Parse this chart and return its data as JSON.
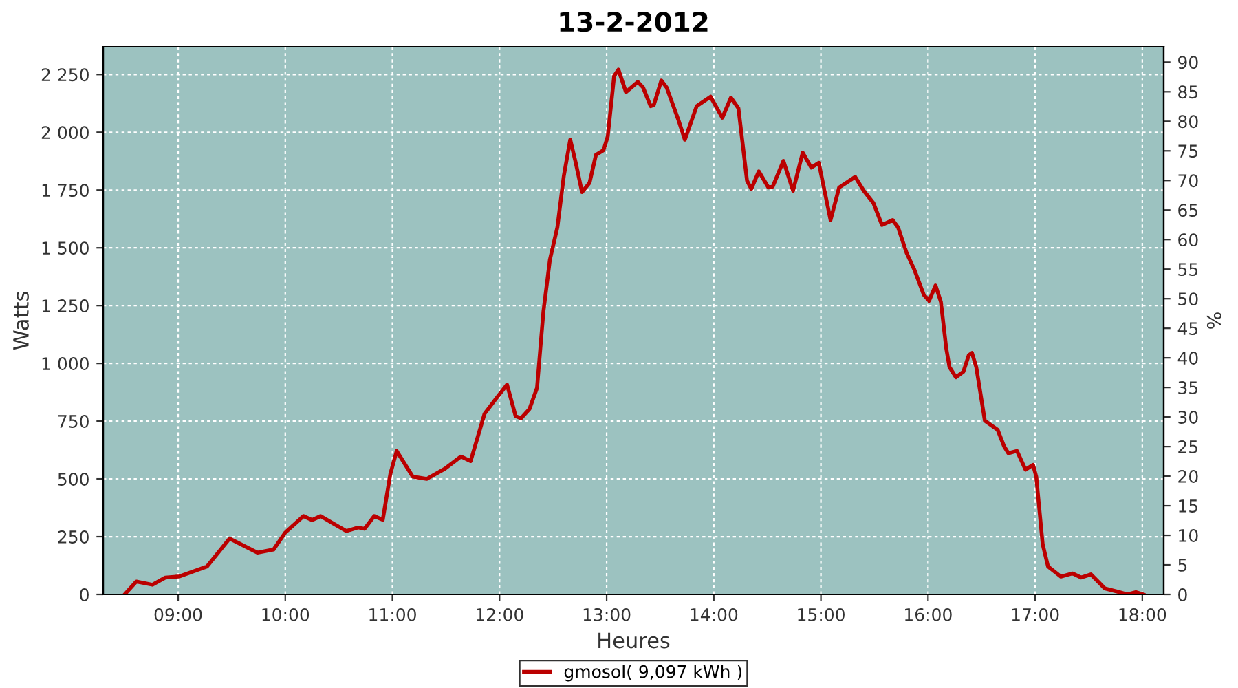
{
  "chart_data": {
    "type": "line",
    "title": "13-2-2012",
    "xlabel": "Heures",
    "ylabel": "Watts",
    "y2label": "%",
    "series": [
      {
        "name": "gmosol( 9,097 kWh )",
        "color": "#bb0000",
        "x": [
          8.5,
          8.61,
          8.76,
          8.88,
          9.01,
          9.27,
          9.48,
          9.74,
          9.89,
          10.0,
          10.17,
          10.25,
          10.33,
          10.57,
          10.68,
          10.74,
          10.83,
          10.91,
          10.98,
          11.04,
          11.19,
          11.32,
          11.49,
          11.64,
          11.73,
          11.86,
          11.96,
          12.07,
          12.15,
          12.2,
          12.28,
          12.35,
          12.41,
          12.47,
          12.54,
          12.6,
          12.66,
          12.71,
          12.77,
          12.84,
          12.9,
          12.97,
          13.01,
          13.07,
          13.11,
          13.18,
          13.29,
          13.34,
          13.41,
          13.44,
          13.51,
          13.56,
          13.67,
          13.73,
          13.84,
          13.97,
          14.08,
          14.16,
          14.23,
          14.31,
          14.35,
          14.42,
          14.51,
          14.55,
          14.65,
          14.74,
          14.83,
          14.91,
          14.98,
          15.09,
          15.17,
          15.32,
          15.4,
          15.49,
          15.57,
          15.67,
          15.72,
          15.8,
          15.87,
          15.96,
          16.01,
          16.07,
          16.12,
          16.17,
          16.2,
          16.26,
          16.33,
          16.38,
          16.41,
          16.45,
          16.53,
          16.65,
          16.71,
          16.75,
          16.83,
          16.91,
          16.98,
          17.01,
          17.07,
          17.12,
          17.24,
          17.35,
          17.43,
          17.52,
          17.65,
          17.77,
          17.86,
          17.94,
          18.01
        ],
        "values": [
          0,
          56,
          42,
          73,
          78,
          121,
          242,
          181,
          194,
          268,
          339,
          322,
          339,
          274,
          290,
          284,
          339,
          323,
          520,
          621,
          510,
          500,
          544,
          597,
          577,
          782,
          843,
          908,
          772,
          762,
          803,
          894,
          1226,
          1448,
          1589,
          1811,
          1968,
          1871,
          1741,
          1781,
          1902,
          1922,
          1982,
          2244,
          2271,
          2174,
          2218,
          2194,
          2113,
          2118,
          2224,
          2194,
          2053,
          1968,
          2113,
          2154,
          2063,
          2150,
          2104,
          1791,
          1755,
          1831,
          1761,
          1765,
          1876,
          1747,
          1912,
          1847,
          1868,
          1620,
          1761,
          1807,
          1747,
          1694,
          1599,
          1620,
          1589,
          1478,
          1408,
          1297,
          1271,
          1337,
          1266,
          1065,
          984,
          940,
          964,
          1035,
          1045,
          984,
          752,
          712,
          641,
          611,
          621,
          540,
          561,
          510,
          218,
          121,
          77,
          91,
          73,
          87,
          26,
          12,
          0,
          10,
          0
        ]
      }
    ],
    "xlim": [
      8.3,
      18.2
    ],
    "xticks": [
      {
        "value": 9,
        "label": "09:00"
      },
      {
        "value": 10,
        "label": "10:00"
      },
      {
        "value": 11,
        "label": "11:00"
      },
      {
        "value": 12,
        "label": "12:00"
      },
      {
        "value": 13,
        "label": "13:00"
      },
      {
        "value": 14,
        "label": "14:00"
      },
      {
        "value": 15,
        "label": "15:00"
      },
      {
        "value": 16,
        "label": "16:00"
      },
      {
        "value": 17,
        "label": "17:00"
      },
      {
        "value": 18,
        "label": "18:00"
      }
    ],
    "ylim": [
      0,
      2370
    ],
    "yticks": [
      0,
      250,
      500,
      750,
      {
        "value": 1000,
        "label": "1 000"
      },
      {
        "value": 1250,
        "label": "1 250"
      },
      {
        "value": 1500,
        "label": "1 500"
      },
      {
        "value": 1750,
        "label": "1 750"
      },
      {
        "value": 2000,
        "label": "2 000"
      },
      {
        "value": 2250,
        "label": "2 250"
      }
    ],
    "y2lim": [
      0,
      92.6
    ],
    "y2ticks": [
      0,
      5,
      10,
      15,
      20,
      25,
      30,
      35,
      40,
      45,
      50,
      55,
      60,
      65,
      70,
      75,
      80,
      85,
      90
    ],
    "grid": true,
    "legend": "bottom",
    "marker": "none",
    "line_style": "solid"
  }
}
